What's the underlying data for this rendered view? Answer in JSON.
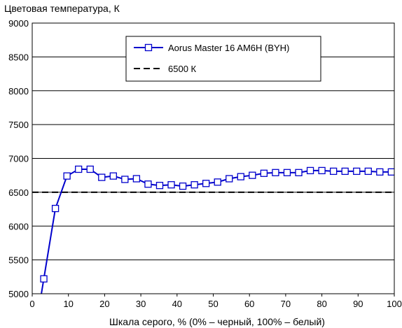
{
  "chart_data": {
    "type": "line",
    "title": "",
    "ylabel": "Цветовая температура, К",
    "xlabel": "Шкала серого, % (0% – черный, 100% – белый)",
    "xlim": [
      0,
      100
    ],
    "ylim": [
      5000,
      9000
    ],
    "x_ticks": [
      0,
      10,
      20,
      30,
      40,
      50,
      60,
      70,
      80,
      90,
      100
    ],
    "y_ticks": [
      5000,
      5500,
      6000,
      6500,
      7000,
      7500,
      8000,
      8500,
      9000
    ],
    "grid": "horizontal",
    "legend_position": "top-center",
    "series": [
      {
        "name": "Aorus Master 16 AM6H (BYH)",
        "color": "#0000cc",
        "marker": "open-square",
        "x": [
          3.2,
          6.4,
          9.6,
          12.8,
          16.0,
          19.2,
          22.4,
          25.6,
          28.8,
          32.0,
          35.2,
          38.4,
          41.6,
          44.8,
          48.0,
          51.2,
          54.4,
          57.6,
          60.8,
          64.0,
          67.2,
          70.4,
          73.6,
          76.8,
          80.0,
          83.2,
          86.4,
          89.6,
          92.8,
          96.0,
          99.2
        ],
        "values": [
          5220,
          6260,
          6740,
          6840,
          6840,
          6720,
          6740,
          6690,
          6700,
          6620,
          6600,
          6610,
          6590,
          6610,
          6630,
          6650,
          6700,
          6730,
          6750,
          6780,
          6790,
          6790,
          6790,
          6820,
          6820,
          6810,
          6810,
          6810,
          6810,
          6800,
          6800
        ]
      },
      {
        "name": "6500 К",
        "color": "#000000",
        "style": "dashed",
        "x": [
          0,
          100
        ],
        "values": [
          6500,
          6500
        ]
      }
    ]
  }
}
